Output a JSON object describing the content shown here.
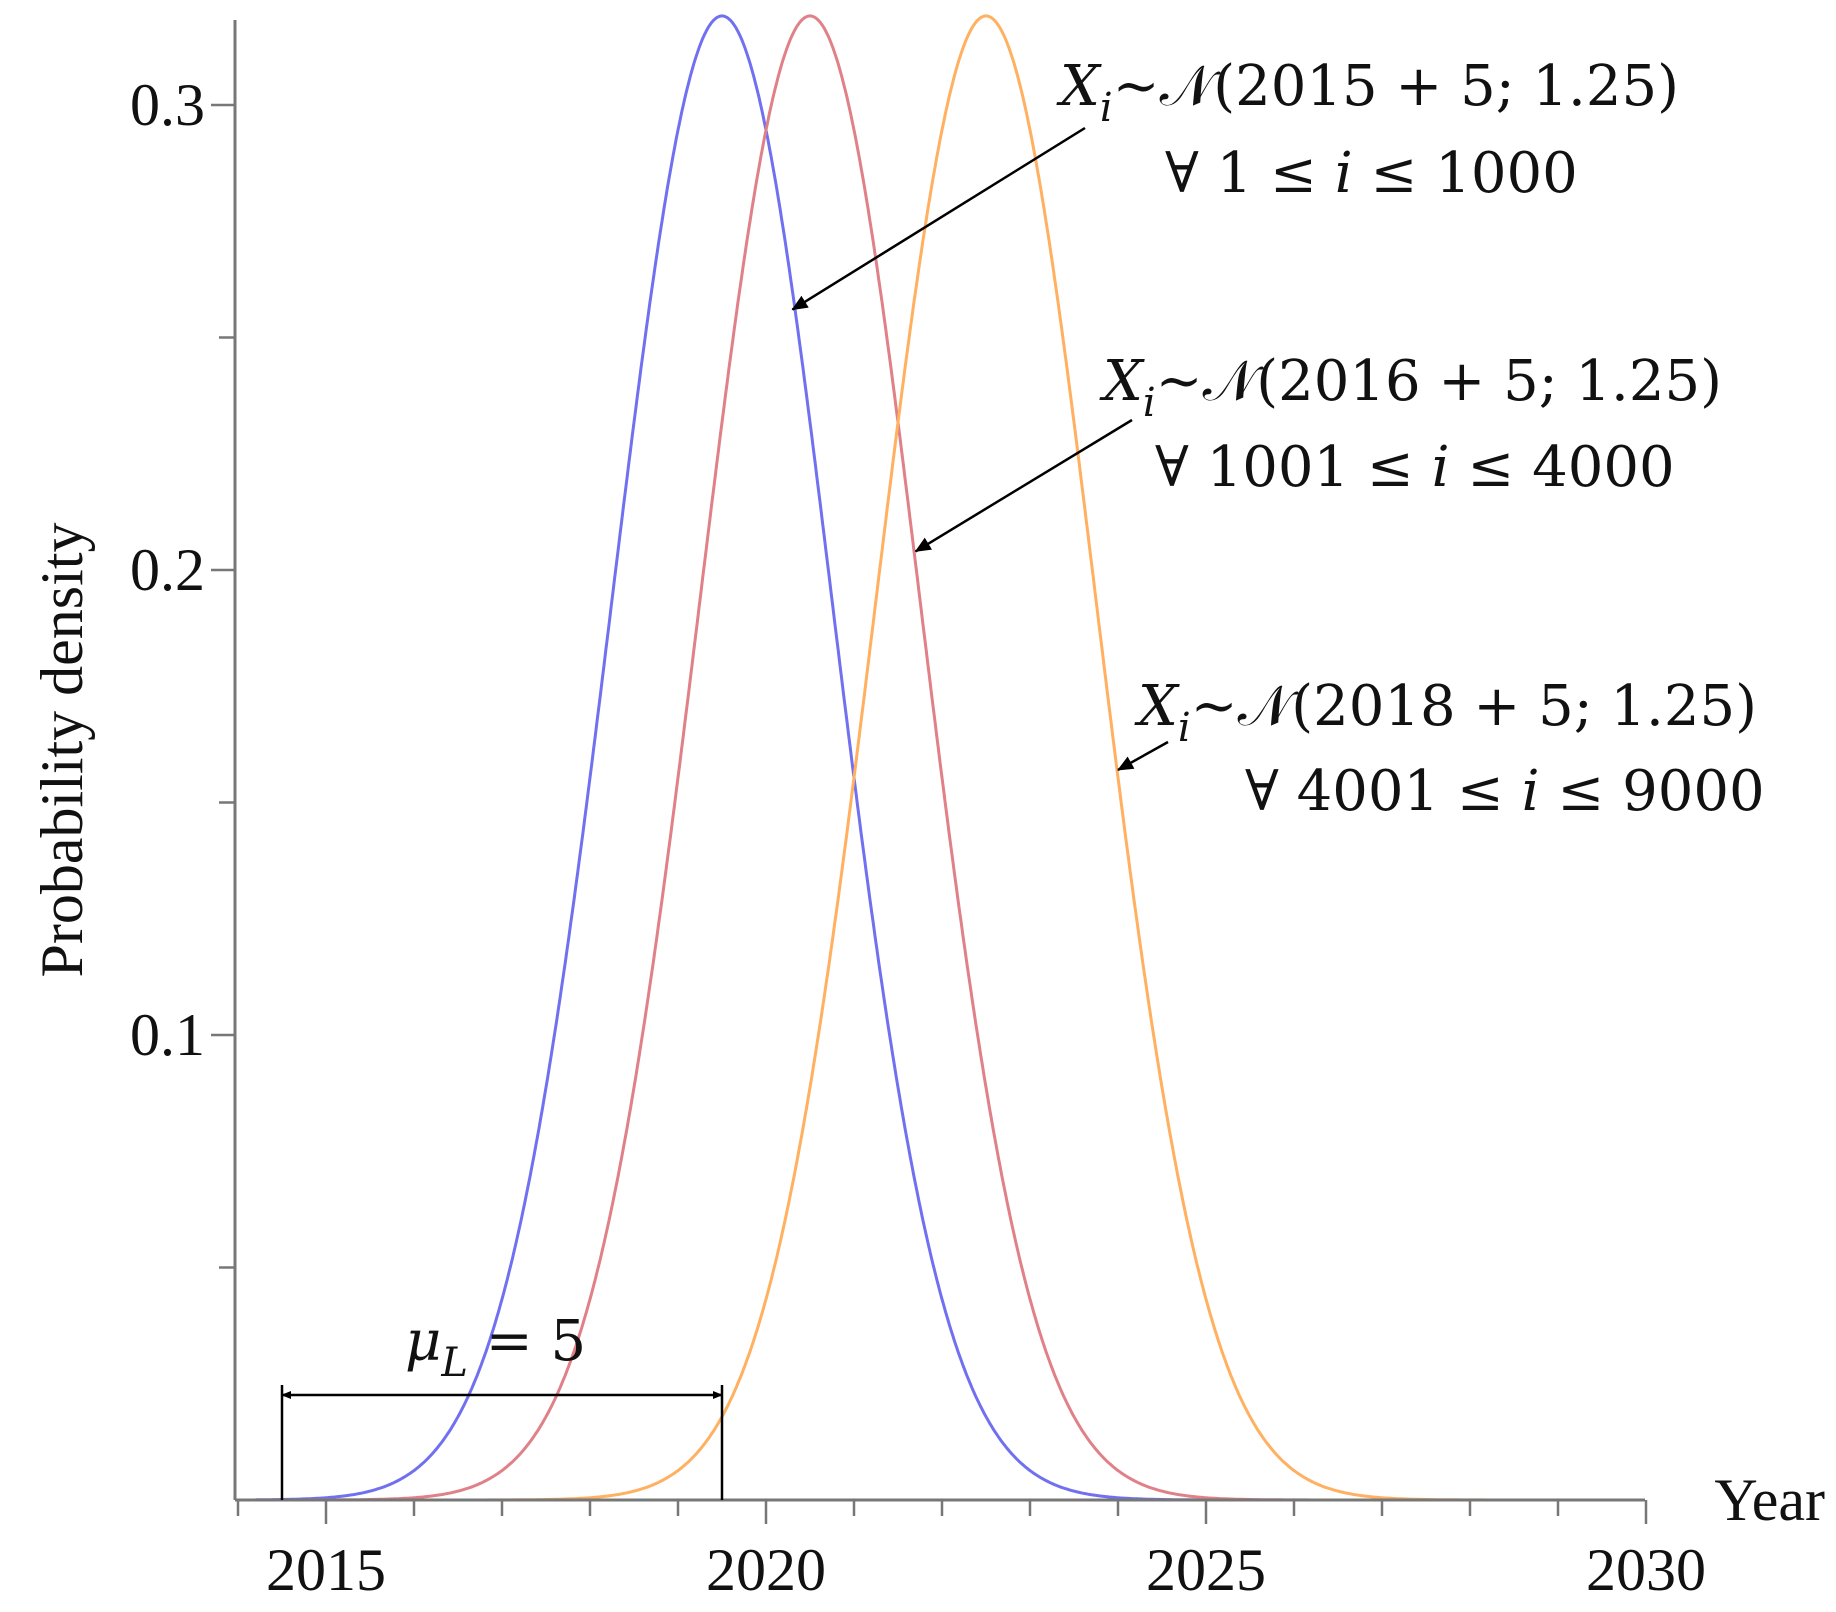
{
  "chart_data": {
    "type": "line",
    "xlabel": "Year",
    "ylabel": "Probability density",
    "xlim": [
      2013.7,
      2030
    ],
    "ylim": [
      0,
      0.32
    ],
    "x_ticks": [
      "2015",
      "2020",
      "2025",
      "2030"
    ],
    "x_tick_values": [
      2015,
      2020,
      2025,
      2030
    ],
    "x_minor_step": 1,
    "y_ticks": [
      "0.1",
      "0.2",
      "0.3"
    ],
    "y_tick_values": [
      0.1,
      0.2,
      0.3
    ],
    "y_minor_step": 0.05,
    "grid": false,
    "legend": "none",
    "series": [
      {
        "distribution": "normal",
        "mean": 2019.5,
        "sd": 1.25,
        "color": "#7070f0"
      },
      {
        "distribution": "normal",
        "mean": 2020.5,
        "sd": 1.25,
        "color": "#e08088"
      },
      {
        "distribution": "normal",
        "mean": 2022.5,
        "sd": 1.25,
        "color": "#ffb060"
      }
    ],
    "annotations": [
      {
        "main": "X",
        "sub": "i",
        "text": "~𝒩(2015 + 5; 1.25)",
        "line2_prefix": "∀ 1 ≤ ",
        "line2_var": "i",
        "line2_suffix": " ≤ 1000",
        "arrow_target": [
          2020.3,
          0.256
        ]
      },
      {
        "main": "X",
        "sub": "i",
        "text": "~𝒩(2016 + 5; 1.25)",
        "line2_prefix": "∀ 1001 ≤ ",
        "line2_var": "i",
        "line2_suffix": " ≤ 4000",
        "arrow_target": [
          2021.7,
          0.204
        ]
      },
      {
        "main": "X",
        "sub": "i",
        "text": "~𝒩(2018 + 5; 1.25)",
        "line2_prefix": "∀ 4001 ≤ ",
        "line2_var": "i",
        "line2_suffix": " ≤ 9000",
        "arrow_target": [
          2024.0,
          0.157
        ]
      }
    ],
    "interval": {
      "from": 2014.5,
      "to": 2019.5,
      "label_main": "μ",
      "label_sub": "L",
      "label_rest": " = 5"
    }
  }
}
